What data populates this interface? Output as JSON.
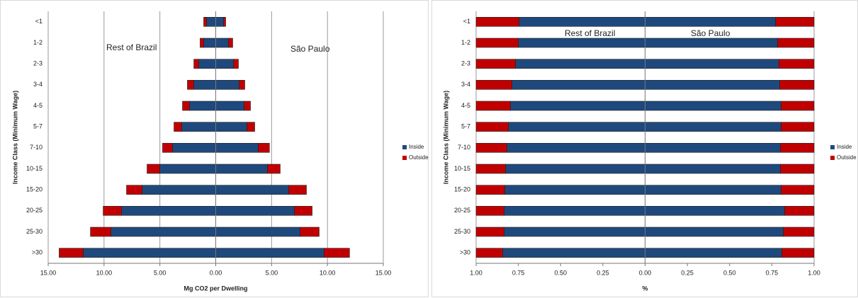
{
  "chart_data": [
    {
      "type": "bar",
      "orientation": "horizontal",
      "stacked": true,
      "categories": [
        "<1",
        "1-2",
        "2-3",
        "3-4",
        "4-5",
        "5-7",
        "7-10",
        "10-15",
        "15-20",
        "20-25",
        "25-30",
        ">30"
      ],
      "series": [
        {
          "name": "Inside",
          "color": "#1f497d",
          "values_rest": [
            -0.82,
            -1.08,
            -1.52,
            -1.97,
            -2.35,
            -3.04,
            -3.87,
            -5.01,
            -6.59,
            -8.43,
            -9.38,
            -11.86
          ],
          "values": [
            0.7,
            1.14,
            1.59,
            2.09,
            2.54,
            2.79,
            3.8,
            4.63,
            6.53,
            7.04,
            7.55,
            9.7
          ]
        },
        {
          "name": "Outside",
          "color": "#c00000",
          "values_rest": [
            -0.26,
            -0.32,
            -0.44,
            -0.57,
            -0.63,
            -0.7,
            -0.89,
            -1.14,
            -1.4,
            -1.65,
            -1.84,
            -2.16
          ],
          "values": [
            0.19,
            0.38,
            0.44,
            0.51,
            0.57,
            0.7,
            1.01,
            1.14,
            1.59,
            1.59,
            1.71,
            2.28
          ]
        }
      ],
      "xlabel": "Mg CO2 per Dwelling",
      "ylabel": "Income Class (Minimum Wage)",
      "annotations": [
        "Rest of Brazil",
        "São Paulo"
      ],
      "xlim": [
        -15,
        15
      ],
      "xticks": [
        {
          "value": -15,
          "label": "15.00"
        },
        {
          "value": -10,
          "label": "10.00"
        },
        {
          "value": -5,
          "label": "5.00"
        },
        {
          "value": 0,
          "label": "0.00"
        },
        {
          "value": 5,
          "label": "5.00"
        },
        {
          "value": 10,
          "label": "10.00"
        },
        {
          "value": 15,
          "label": "15.00"
        }
      ],
      "grid": true,
      "legend": "right"
    },
    {
      "type": "bar",
      "orientation": "horizontal",
      "stacked": true,
      "categories": [
        "<1",
        "1-2",
        "2-3",
        "3-4",
        "4-5",
        "5-7",
        "7-10",
        "10-15",
        "15-20",
        "20-25",
        "25-30",
        ">30"
      ],
      "series": [
        {
          "name": "Inside",
          "color": "#1f497d",
          "values_rest": [
            -0.746,
            -0.75,
            -0.767,
            -0.788,
            -0.797,
            -0.809,
            -0.818,
            -0.826,
            -0.83,
            -0.834,
            -0.834,
            -0.843
          ],
          "values": [
            0.772,
            0.784,
            0.792,
            0.797,
            0.805,
            0.805,
            0.801,
            0.801,
            0.805,
            0.826,
            0.818,
            0.809
          ]
        },
        {
          "name": "Outside",
          "color": "#c00000",
          "values_rest": [
            -0.254,
            -0.25,
            -0.233,
            -0.212,
            -0.203,
            -0.191,
            -0.182,
            -0.174,
            -0.17,
            -0.166,
            -0.166,
            -0.157
          ],
          "values": [
            0.228,
            0.216,
            0.208,
            0.203,
            0.195,
            0.195,
            0.199,
            0.199,
            0.195,
            0.174,
            0.182,
            0.191
          ]
        }
      ],
      "xlabel": "%",
      "ylabel": "Income Class (Minimum Wage)",
      "annotations": [
        "Rest of Brazil",
        "São Paulo"
      ],
      "xlim": [
        -1,
        1
      ],
      "xticks": [
        {
          "value": -1,
          "label": "1.00"
        },
        {
          "value": -0.75,
          "label": "0.75"
        },
        {
          "value": -0.5,
          "label": "0.50"
        },
        {
          "value": -0.25,
          "label": "0.25"
        },
        {
          "value": 0,
          "label": "0.00"
        },
        {
          "value": 0.25,
          "label": "0.25"
        },
        {
          "value": 0.5,
          "label": "0.50"
        },
        {
          "value": 0.75,
          "label": "0.75"
        },
        {
          "value": 1,
          "label": "1.00"
        }
      ],
      "grid": false,
      "legend": "right"
    }
  ]
}
